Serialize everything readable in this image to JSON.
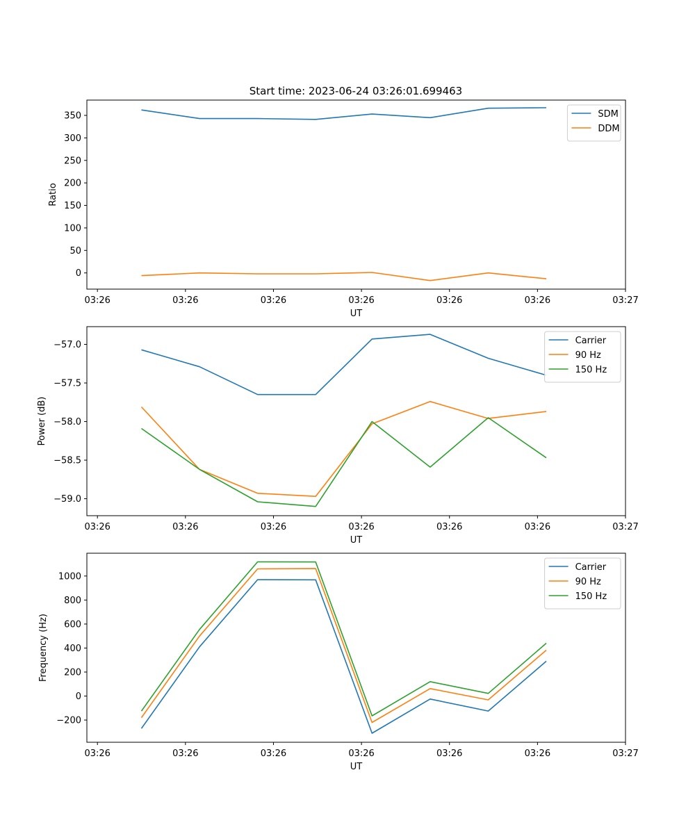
{
  "title": "Start time: 2023-06-24 03:26:01.699463",
  "chart_data": [
    {
      "type": "line",
      "xlabel": "UT",
      "ylabel": "Ratio",
      "x_tick_labels": [
        "03:26",
        "03:26",
        "03:26",
        "03:26",
        "03:26",
        "03:26",
        "03:27"
      ],
      "x_ticks_relative": [
        0,
        1,
        2,
        3,
        4,
        5,
        6
      ],
      "x": [
        0.5,
        1.16,
        1.82,
        2.48,
        3.12,
        3.78,
        4.44,
        5.1
      ],
      "xlim": [
        -0.12,
        6.0
      ],
      "ylim": [
        -36,
        384
      ],
      "yticks": [
        0,
        50,
        100,
        150,
        200,
        250,
        300,
        350
      ],
      "grid": false,
      "legend_position": "top-right",
      "series": [
        {
          "name": "SDM",
          "color": "#1f77b4",
          "values": [
            362,
            343,
            343,
            341,
            353,
            345,
            366,
            367
          ]
        },
        {
          "name": "DDM",
          "color": "#ff7f0e",
          "values": [
            -6,
            0,
            -2,
            -2,
            1,
            -17,
            0,
            -13
          ]
        }
      ]
    },
    {
      "type": "line",
      "xlabel": "UT",
      "ylabel": "Power (dB)",
      "x_tick_labels": [
        "03:26",
        "03:26",
        "03:26",
        "03:26",
        "03:26",
        "03:26",
        "03:27"
      ],
      "x_ticks_relative": [
        0,
        1,
        2,
        3,
        4,
        5,
        6
      ],
      "x": [
        0.5,
        1.16,
        1.82,
        2.48,
        3.12,
        3.78,
        4.44,
        5.1
      ],
      "xlim": [
        -0.12,
        6.0
      ],
      "ylim": [
        -59.22,
        -56.77
      ],
      "yticks": [
        -59.0,
        -58.5,
        -58.0,
        -57.5,
        -57.0
      ],
      "ytick_labels": [
        "−59.0",
        "−58.5",
        "−58.0",
        "−57.5",
        "−57.0"
      ],
      "grid": false,
      "legend_position": "top-right",
      "series": [
        {
          "name": "Carrier",
          "color": "#1f77b4",
          "values": [
            -57.07,
            -57.29,
            -57.65,
            -57.65,
            -56.93,
            -56.87,
            -57.18,
            -57.4
          ]
        },
        {
          "name": "90 Hz",
          "color": "#ff7f0e",
          "values": [
            -57.81,
            -58.62,
            -58.93,
            -58.97,
            -58.03,
            -57.74,
            -57.96,
            -57.87
          ]
        },
        {
          "name": "150 Hz",
          "color": "#2ca02c",
          "values": [
            -58.09,
            -58.62,
            -59.04,
            -59.1,
            -58.0,
            -58.59,
            -57.95,
            -58.47
          ]
        }
      ]
    },
    {
      "type": "line",
      "xlabel": "UT",
      "ylabel": "Frequency (Hz)",
      "x_tick_labels": [
        "03:26",
        "03:26",
        "03:26",
        "03:26",
        "03:26",
        "03:26",
        "03:27"
      ],
      "x_ticks_relative": [
        0,
        1,
        2,
        3,
        4,
        5,
        6
      ],
      "x": [
        0.5,
        1.16,
        1.82,
        2.48,
        3.12,
        3.78,
        4.44,
        5.1
      ],
      "xlim": [
        -0.12,
        6.0
      ],
      "ylim": [
        -385,
        1190
      ],
      "yticks": [
        -200,
        0,
        200,
        400,
        600,
        800,
        1000
      ],
      "ytick_labels": [
        "−200",
        "0",
        "200",
        "400",
        "600",
        "800",
        "1000"
      ],
      "grid": false,
      "legend_position": "top-right",
      "series": [
        {
          "name": "Carrier",
          "color": "#1f77b4",
          "values": [
            -270,
            410,
            970,
            968,
            -310,
            -25,
            -125,
            290
          ]
        },
        {
          "name": "90 Hz",
          "color": "#ff7f0e",
          "values": [
            -180,
            500,
            1060,
            1062,
            -220,
            62,
            -32,
            382
          ]
        },
        {
          "name": "150 Hz",
          "color": "#2ca02c",
          "values": [
            -125,
            555,
            1118,
            1117,
            -165,
            120,
            22,
            440
          ]
        }
      ]
    }
  ]
}
